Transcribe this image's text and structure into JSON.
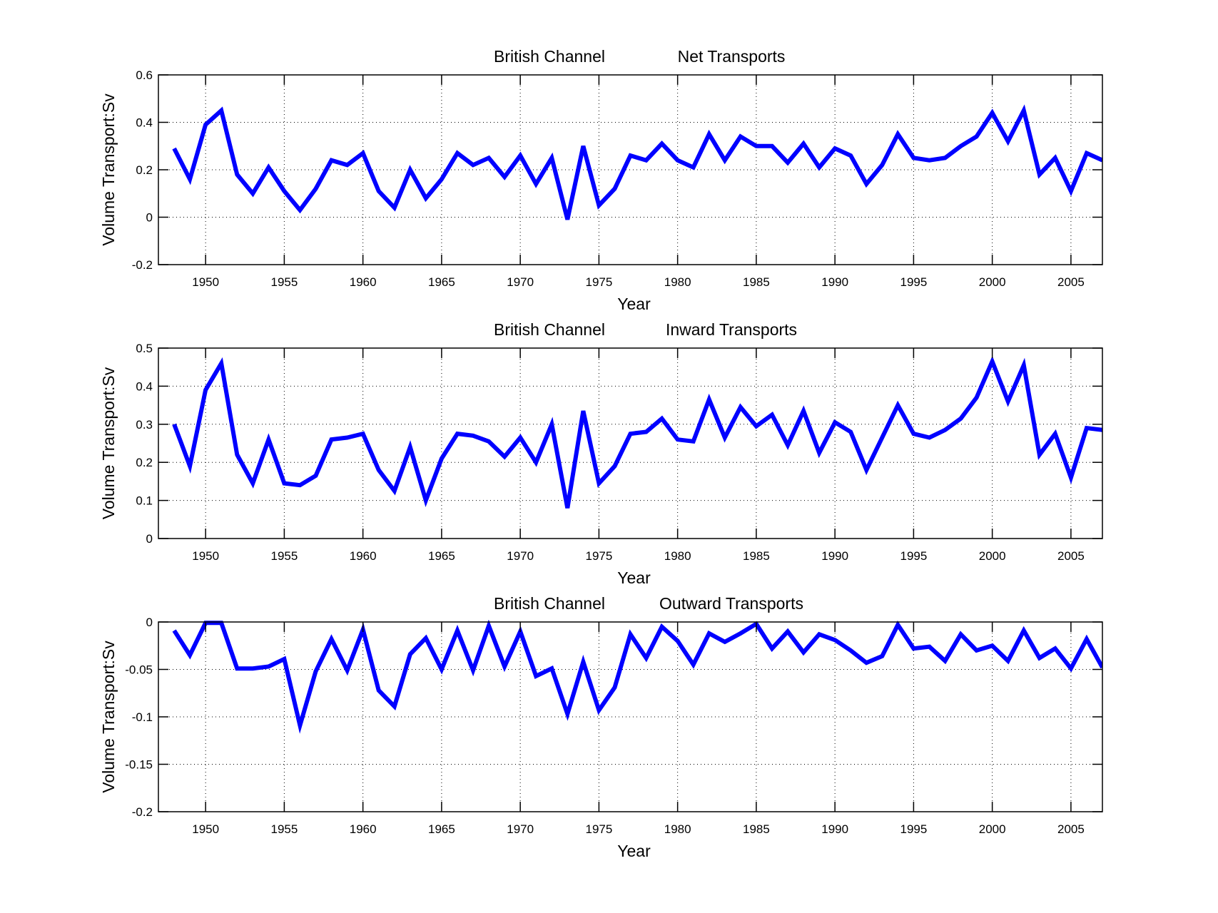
{
  "chart_data": [
    {
      "type": "line",
      "title_left": "British Channel",
      "title_right": "Net Transports",
      "xlabel": "Year",
      "ylabel": "Volume Transport:Sv",
      "xlim": [
        1947,
        2007
      ],
      "ylim": [
        -0.2,
        0.6
      ],
      "xticks": [
        1950,
        1955,
        1960,
        1965,
        1970,
        1975,
        1980,
        1985,
        1990,
        1995,
        2000,
        2005
      ],
      "xtick_labels": [
        "1950",
        "1955",
        "1960",
        "1965",
        "1970",
        "1975",
        "1980",
        "1985",
        "1990",
        "1995",
        "2000",
        "2005"
      ],
      "yticks": [
        -0.2,
        0,
        0.2,
        0.4,
        0.6
      ],
      "ytick_labels": [
        "-0.2",
        "0",
        "0.2",
        "0.4",
        "0.6"
      ],
      "grid": true,
      "series": [
        {
          "name": "Net Transports",
          "color": "#0000ff",
          "x": [
            1948,
            1949,
            1950,
            1951,
            1952,
            1953,
            1954,
            1955,
            1956,
            1957,
            1958,
            1959,
            1960,
            1961,
            1962,
            1963,
            1964,
            1965,
            1966,
            1967,
            1968,
            1969,
            1970,
            1971,
            1972,
            1973,
            1974,
            1975,
            1976,
            1977,
            1978,
            1979,
            1980,
            1981,
            1982,
            1983,
            1984,
            1985,
            1986,
            1987,
            1988,
            1989,
            1990,
            1991,
            1992,
            1993,
            1994,
            1995,
            1996,
            1997,
            1998,
            1999,
            2000,
            2001,
            2002,
            2003,
            2004,
            2005,
            2006,
            2007
          ],
          "values": [
            0.29,
            0.16,
            0.39,
            0.45,
            0.18,
            0.1,
            0.21,
            0.11,
            0.03,
            0.12,
            0.24,
            0.22,
            0.27,
            0.11,
            0.04,
            0.2,
            0.08,
            0.16,
            0.27,
            0.22,
            0.25,
            0.17,
            0.26,
            0.14,
            0.25,
            -0.01,
            0.3,
            0.05,
            0.12,
            0.26,
            0.24,
            0.31,
            0.24,
            0.21,
            0.35,
            0.24,
            0.34,
            0.3,
            0.3,
            0.23,
            0.31,
            0.21,
            0.29,
            0.26,
            0.14,
            0.22,
            0.35,
            0.25,
            0.24,
            0.25,
            0.3,
            0.34,
            0.44,
            0.32,
            0.45,
            0.18,
            0.25,
            0.11,
            0.27,
            0.24
          ]
        }
      ]
    },
    {
      "type": "line",
      "title_left": "British Channel",
      "title_right": "Inward Transports",
      "xlabel": "Year",
      "ylabel": "Volume Transport:Sv",
      "xlim": [
        1947,
        2007
      ],
      "ylim": [
        0,
        0.5
      ],
      "xticks": [
        1950,
        1955,
        1960,
        1965,
        1970,
        1975,
        1980,
        1985,
        1990,
        1995,
        2000,
        2005
      ],
      "xtick_labels": [
        "1950",
        "1955",
        "1960",
        "1965",
        "1970",
        "1975",
        "1980",
        "1985",
        "1990",
        "1995",
        "2000",
        "2005"
      ],
      "yticks": [
        0,
        0.1,
        0.2,
        0.3,
        0.4,
        0.5
      ],
      "ytick_labels": [
        "0",
        "0.1",
        "0.2",
        "0.3",
        "0.4",
        "0.5"
      ],
      "grid": true,
      "series": [
        {
          "name": "Inward Transports",
          "color": "#0000ff",
          "x": [
            1948,
            1949,
            1950,
            1951,
            1952,
            1953,
            1954,
            1955,
            1956,
            1957,
            1958,
            1959,
            1960,
            1961,
            1962,
            1963,
            1964,
            1965,
            1966,
            1967,
            1968,
            1969,
            1970,
            1971,
            1972,
            1973,
            1974,
            1975,
            1976,
            1977,
            1978,
            1979,
            1980,
            1981,
            1982,
            1983,
            1984,
            1985,
            1986,
            1987,
            1988,
            1989,
            1990,
            1991,
            1992,
            1993,
            1994,
            1995,
            1996,
            1997,
            1998,
            1999,
            2000,
            2001,
            2002,
            2003,
            2004,
            2005,
            2006,
            2007
          ],
          "values": [
            0.3,
            0.19,
            0.39,
            0.46,
            0.22,
            0.145,
            0.26,
            0.145,
            0.14,
            0.165,
            0.26,
            0.265,
            0.275,
            0.18,
            0.125,
            0.24,
            0.1,
            0.21,
            0.275,
            0.27,
            0.255,
            0.215,
            0.265,
            0.2,
            0.3,
            0.08,
            0.335,
            0.145,
            0.19,
            0.275,
            0.28,
            0.315,
            0.26,
            0.255,
            0.365,
            0.265,
            0.345,
            0.295,
            0.325,
            0.245,
            0.335,
            0.225,
            0.305,
            0.28,
            0.18,
            0.265,
            0.35,
            0.275,
            0.265,
            0.285,
            0.315,
            0.37,
            0.465,
            0.36,
            0.455,
            0.22,
            0.275,
            0.16,
            0.29,
            0.285
          ]
        }
      ]
    },
    {
      "type": "line",
      "title_left": "British Channel",
      "title_right": "Outward Transports",
      "xlabel": "Year",
      "ylabel": "Volume Transport:Sv",
      "xlim": [
        1947,
        2007
      ],
      "ylim": [
        -0.2,
        0
      ],
      "xticks": [
        1950,
        1955,
        1960,
        1965,
        1970,
        1975,
        1980,
        1985,
        1990,
        1995,
        2000,
        2005
      ],
      "xtick_labels": [
        "1950",
        "1955",
        "1960",
        "1965",
        "1970",
        "1975",
        "1980",
        "1985",
        "1990",
        "1995",
        "2000",
        "2005"
      ],
      "yticks": [
        -0.2,
        -0.15,
        -0.1,
        -0.05,
        0
      ],
      "ytick_labels": [
        "-0.2",
        "-0.15",
        "-0.1",
        "-0.05",
        "0"
      ],
      "grid": true,
      "series": [
        {
          "name": "Outward Transports",
          "color": "#0000ff",
          "x": [
            1948,
            1949,
            1950,
            1951,
            1952,
            1953,
            1954,
            1955,
            1956,
            1957,
            1958,
            1959,
            1960,
            1961,
            1962,
            1963,
            1964,
            1965,
            1966,
            1967,
            1968,
            1969,
            1970,
            1971,
            1972,
            1973,
            1974,
            1975,
            1976,
            1977,
            1978,
            1979,
            1980,
            1981,
            1982,
            1983,
            1984,
            1985,
            1986,
            1987,
            1988,
            1989,
            1990,
            1991,
            1992,
            1993,
            1994,
            1995,
            1996,
            1997,
            1998,
            1999,
            2000,
            2001,
            2002,
            2003,
            2004,
            2005,
            2006,
            2007
          ],
          "values": [
            -0.009,
            -0.035,
            -0.001,
            -0.001,
            -0.049,
            -0.049,
            -0.047,
            -0.039,
            -0.109,
            -0.052,
            -0.018,
            -0.051,
            -0.008,
            -0.072,
            -0.089,
            -0.034,
            -0.017,
            -0.05,
            -0.009,
            -0.051,
            -0.004,
            -0.047,
            -0.01,
            -0.057,
            -0.049,
            -0.097,
            -0.042,
            -0.093,
            -0.069,
            -0.013,
            -0.038,
            -0.005,
            -0.02,
            -0.045,
            -0.012,
            -0.021,
            -0.012,
            -0.002,
            -0.028,
            -0.01,
            -0.032,
            -0.013,
            -0.019,
            -0.03,
            -0.043,
            -0.036,
            -0.003,
            -0.028,
            -0.026,
            -0.041,
            -0.013,
            -0.03,
            -0.025,
            -0.041,
            -0.009,
            -0.038,
            -0.028,
            -0.049,
            -0.018,
            -0.048
          ]
        }
      ]
    }
  ]
}
